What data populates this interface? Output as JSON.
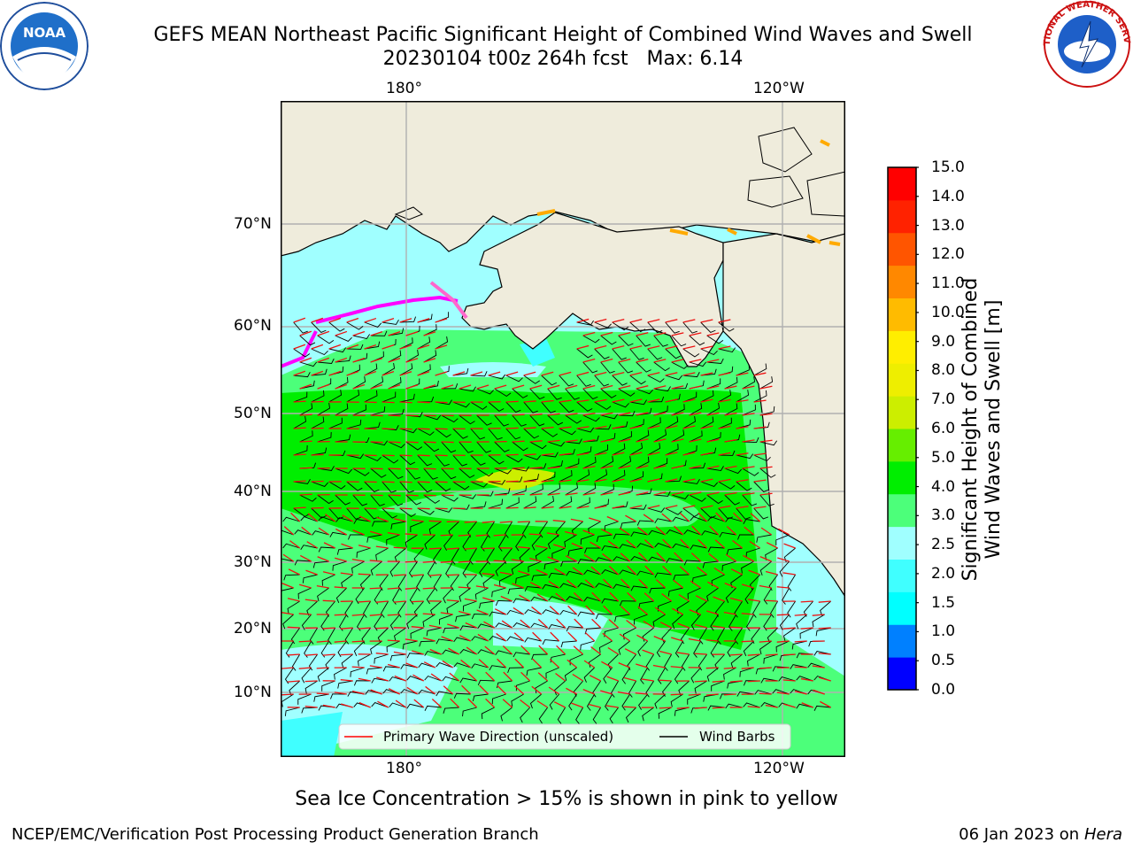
{
  "header": {
    "title_line1": "GEFS MEAN Northeast Pacific Significant Height of Combined Wind Waves and Swell",
    "title_line2": "20230104 t00z 264h fcst   Max: 6.14",
    "noaa_logo_text": "NOAA",
    "nws_logo_text": "NATIONAL WEATHER SERVICE"
  },
  "map": {
    "lon_labels_top": [
      "180°",
      "120°W"
    ],
    "lon_labels_bottom": [
      "180°",
      "120°W"
    ],
    "lat_labels": [
      "70°N",
      "60°N",
      "50°N",
      "40°N",
      "30°N",
      "20°N",
      "10°N"
    ],
    "legend": {
      "wave_label": "Primary Wave Direction (unscaled)",
      "wind_label": "Wind Barbs",
      "wave_color": "#ff0000",
      "wind_color": "#000000"
    },
    "land_color": "#efecdc",
    "ice_colors": [
      "#ff00ff",
      "#ff66cc",
      "#ffaa00",
      "#ffdd00"
    ]
  },
  "colorbar": {
    "label_line1": "Significant Height of Combined",
    "label_line2": "Wind Waves and Swell [m]",
    "ticks": [
      "0.0",
      "0.5",
      "1.0",
      "1.5",
      "2.0",
      "2.5",
      "3.0",
      "4.0",
      "5.0",
      "6.0",
      "7.0",
      "8.0",
      "9.0",
      "10.0",
      "11.0",
      "12.0",
      "13.0",
      "14.0",
      "15.0"
    ],
    "colors": [
      "#0000ff",
      "#0080ff",
      "#00ffff",
      "#40ffff",
      "#a0ffff",
      "#4cff7a",
      "#00ee00",
      "#66ee00",
      "#ccee00",
      "#eeee00",
      "#ffee00",
      "#ffbb00",
      "#ff8800",
      "#ff5500",
      "#ff2200",
      "#ff0000"
    ]
  },
  "caption": "Sea Ice Concentration > 15% is shown in pink to yellow",
  "footer": {
    "left": "NCEP/EMC/Verification Post Processing Product Generation Branch",
    "right_prefix": "06 Jan 2023 on ",
    "right_machine": "Hera"
  }
}
